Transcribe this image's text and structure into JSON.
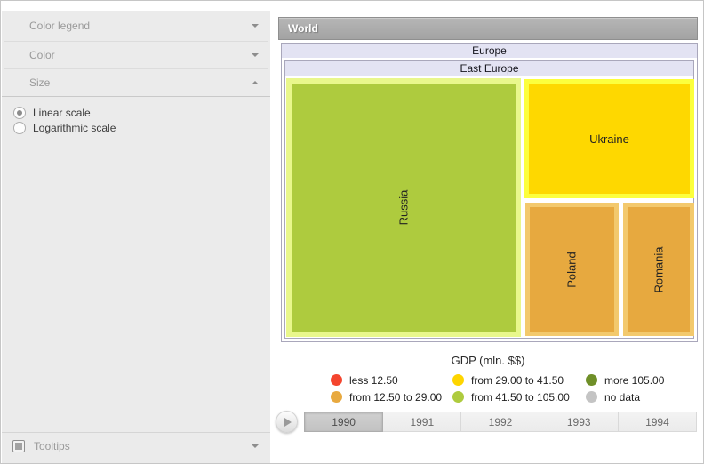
{
  "sidebar": {
    "panels": [
      {
        "label": "Color legend",
        "state": "collapsed"
      },
      {
        "label": "Color",
        "state": "collapsed"
      },
      {
        "label": "Size",
        "state": "expanded"
      }
    ],
    "size_scale_options": [
      {
        "label": "Linear scale",
        "selected": true
      },
      {
        "label": "Logarithmic scale",
        "selected": false
      }
    ],
    "tooltips": {
      "label": "Tooltips",
      "checked": true,
      "state": "collapsed"
    }
  },
  "treemap": {
    "root_label": "World",
    "group_label": "Europe",
    "subgroup_label": "East Europe",
    "cells": [
      {
        "label": "Russia",
        "fill": "#aecb3e",
        "border": "#e9f78c",
        "orientation": "vertical"
      },
      {
        "label": "Ukraine",
        "fill": "#fed800",
        "border": "#fcff3d",
        "orientation": "horizontal"
      },
      {
        "label": "Poland",
        "fill": "#e7a93f",
        "border": "#f3c96d",
        "orientation": "vertical"
      },
      {
        "label": "Romania",
        "fill": "#e7a93f",
        "border": "#f3c96d",
        "orientation": "vertical"
      }
    ]
  },
  "legend": {
    "title": "GDP (mln. $$)",
    "items": [
      {
        "label": "less 12.50",
        "color": "#f4452e"
      },
      {
        "label": "from 29.00 to 41.50",
        "color": "#fed500"
      },
      {
        "label": "more 105.00",
        "color": "#6f8f28"
      },
      {
        "label": "from 12.50 to 29.00",
        "color": "#e8a93f"
      },
      {
        "label": "from 41.50 to 105.00",
        "color": "#aecb3e"
      },
      {
        "label": "no data",
        "color": "#c4c4c4"
      }
    ]
  },
  "timeline": {
    "years": [
      {
        "label": "1990",
        "selected": true
      },
      {
        "label": "1991",
        "selected": false
      },
      {
        "label": "1992",
        "selected": false
      },
      {
        "label": "1993",
        "selected": false
      },
      {
        "label": "1994",
        "selected": false
      }
    ]
  }
}
